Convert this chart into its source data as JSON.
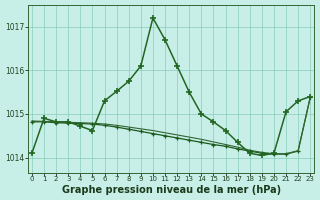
{
  "background_color": "#c8eee8",
  "grid_color": "#88ccbb",
  "xlabel": "Graphe pression niveau de la mer (hPa)",
  "xlabel_fontsize": 7,
  "yticks": [
    1014,
    1015,
    1016,
    1017
  ],
  "ylim": [
    1013.65,
    1017.5
  ],
  "xlim": [
    -0.3,
    23.3
  ],
  "series": [
    {
      "name": "spike_line",
      "x": [
        0,
        1,
        2,
        3,
        4,
        5,
        6,
        7,
        8,
        9,
        10,
        11,
        12,
        13,
        14,
        15,
        16,
        17,
        18,
        19,
        20,
        21,
        22,
        23
      ],
      "y": [
        1014.1,
        1014.9,
        1014.82,
        1014.82,
        1014.72,
        1014.62,
        1015.3,
        1015.52,
        1015.75,
        1016.1,
        1017.2,
        1016.7,
        1016.1,
        1015.5,
        1015.0,
        1014.82,
        1014.62,
        1014.35,
        1014.1,
        1014.05,
        1014.1,
        1015.05,
        1015.3,
        1015.4
      ],
      "color": "#226622",
      "linewidth": 1.1,
      "marker": "+",
      "markersize": 4.5,
      "markeredgewidth": 1.2,
      "zorder": 3
    },
    {
      "name": "flat_line_1",
      "x": [
        0,
        1,
        2,
        3,
        4,
        5,
        6,
        7,
        8,
        9,
        10,
        11,
        12,
        13,
        14,
        15,
        16,
        17,
        18,
        19,
        20,
        21,
        22,
        23
      ],
      "y": [
        1014.82,
        1014.82,
        1014.8,
        1014.79,
        1014.78,
        1014.77,
        1014.74,
        1014.7,
        1014.65,
        1014.6,
        1014.55,
        1014.5,
        1014.45,
        1014.4,
        1014.35,
        1014.3,
        1014.26,
        1014.2,
        1014.15,
        1014.1,
        1014.08,
        1014.08,
        1014.15,
        1015.38
      ],
      "color": "#1a5a1a",
      "linewidth": 0.9,
      "marker": "+",
      "markersize": 3.5,
      "markeredgewidth": 0.9,
      "zorder": 2
    },
    {
      "name": "flat_line_2",
      "x": [
        0,
        1,
        2,
        3,
        4,
        5,
        6,
        7,
        8,
        9,
        10,
        11,
        12,
        13,
        14,
        15,
        16,
        17,
        18,
        19,
        20,
        21,
        22,
        23
      ],
      "y": [
        1014.84,
        1014.83,
        1014.82,
        1014.81,
        1014.8,
        1014.79,
        1014.77,
        1014.74,
        1014.7,
        1014.66,
        1014.62,
        1014.57,
        1014.52,
        1014.47,
        1014.42,
        1014.36,
        1014.3,
        1014.24,
        1014.17,
        1014.12,
        1014.09,
        1014.09,
        1014.16,
        1015.38
      ],
      "color": "#336633",
      "linewidth": 0.8,
      "marker": null,
      "markersize": 0,
      "markeredgewidth": 0,
      "zorder": 2
    }
  ]
}
